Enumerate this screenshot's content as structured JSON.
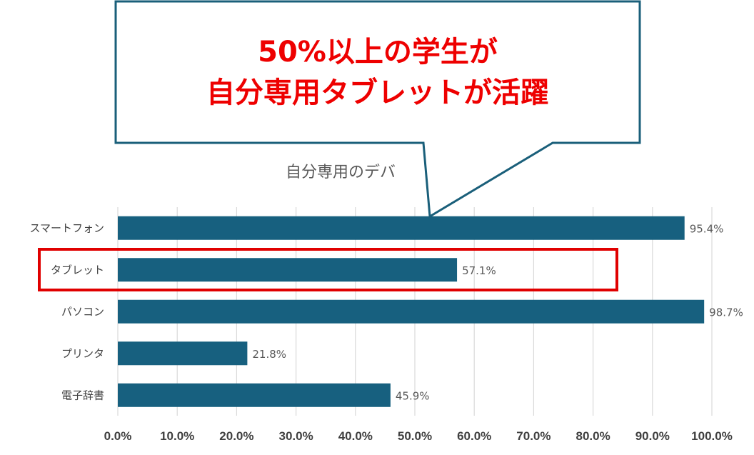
{
  "chart_data": {
    "type": "bar",
    "orientation": "horizontal",
    "title": "自分専用のデバ",
    "categories": [
      "スマートフォン",
      "タブレット",
      "パソコン",
      "プリンタ",
      "電子辞書"
    ],
    "values": [
      95.4,
      57.1,
      98.7,
      21.8,
      45.9
    ],
    "value_labels": [
      "95.4%",
      "57.1%",
      "98.7%",
      "21.8%",
      "45.9%"
    ],
    "xlim": [
      0,
      100
    ],
    "xticks": [
      0,
      10,
      20,
      30,
      40,
      50,
      60,
      70,
      80,
      90,
      100
    ],
    "xtick_labels": [
      "0.0%",
      "10.0%",
      "20.0%",
      "30.0%",
      "40.0%",
      "50.0%",
      "60.0%",
      "70.0%",
      "80.0%",
      "90.0%",
      "100.0%"
    ],
    "grid": true,
    "highlight_category": "タブレット"
  },
  "callout": {
    "line1": "50%以上の学生が",
    "line2": "自分専用タブレットが活躍"
  },
  "colors": {
    "bar": "#17607f",
    "callout_border": "#1a5f7a",
    "callout_text": "#ee0000",
    "highlight_box": "#e00000",
    "grid": "#d9d9d9"
  }
}
